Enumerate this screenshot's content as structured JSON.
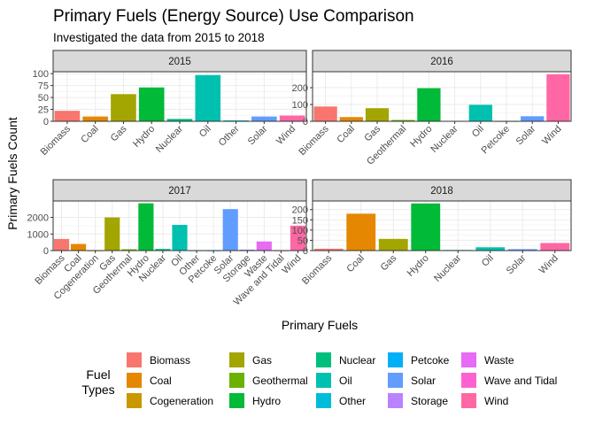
{
  "chart_data": {
    "type": "bar",
    "title": "Primary Fuels (Energy Source) Use Comparison",
    "subtitle": "Investigated the data from 2015 to 2018",
    "xlabel": "Primary Fuels",
    "ylabel": "Primary Fuels Count",
    "legend": {
      "title_lines": [
        "Fuel",
        "Types"
      ],
      "position": "bottom",
      "entries": [
        {
          "name": "Biomass",
          "color": "#F8766D"
        },
        {
          "name": "Coal",
          "color": "#E58700"
        },
        {
          "name": "Cogeneration",
          "color": "#C99800"
        },
        {
          "name": "Gas",
          "color": "#A3A500"
        },
        {
          "name": "Geothermal",
          "color": "#6BB100"
        },
        {
          "name": "Hydro",
          "color": "#00BA38"
        },
        {
          "name": "Nuclear",
          "color": "#00BF7D"
        },
        {
          "name": "Oil",
          "color": "#00C0AF"
        },
        {
          "name": "Other",
          "color": "#00BCD8"
        },
        {
          "name": "Petcoke",
          "color": "#00B0F6"
        },
        {
          "name": "Solar",
          "color": "#619CFF"
        },
        {
          "name": "Storage",
          "color": "#B983FF"
        },
        {
          "name": "Waste",
          "color": "#E76BF3"
        },
        {
          "name": "Wave and Tidal",
          "color": "#FD61D1"
        },
        {
          "name": "Wind",
          "color": "#FF67A4"
        }
      ]
    },
    "panels": [
      {
        "strip": "2015",
        "categories": [
          "Biomass",
          "Coal",
          "Gas",
          "Hydro",
          "Nuclear",
          "Oil",
          "Other",
          "Solar",
          "Wind"
        ],
        "values": [
          22,
          10,
          57,
          71,
          5,
          97,
          2,
          10,
          12
        ],
        "ylim": [
          0,
          104
        ],
        "yticks": [
          0,
          25,
          50,
          75,
          100
        ]
      },
      {
        "strip": "2016",
        "categories": [
          "Biomass",
          "Coal",
          "Gas",
          "Geothermal",
          "Hydro",
          "Nuclear",
          "Oil",
          "Petcoke",
          "Solar",
          "Wind"
        ],
        "values": [
          88,
          25,
          78,
          8,
          197,
          2,
          98,
          1,
          30,
          280
        ],
        "ylim": [
          0,
          295
        ],
        "yticks": [
          0,
          100,
          200
        ]
      },
      {
        "strip": "2017",
        "categories": [
          "Biomass",
          "Coal",
          "Cogeneration",
          "Gas",
          "Geothermal",
          "Hydro",
          "Nuclear",
          "Oil",
          "Other",
          "Petcoke",
          "Solar",
          "Storage",
          "Waste",
          "Wave and Tidal",
          "Wind"
        ],
        "values": [
          700,
          400,
          5,
          2000,
          80,
          2850,
          100,
          1550,
          10,
          5,
          2500,
          60,
          550,
          5,
          1500
        ],
        "ylim": [
          0,
          2990
        ],
        "yticks": [
          0,
          1000,
          2000
        ]
      },
      {
        "strip": "2018",
        "categories": [
          "Biomass",
          "Coal",
          "Gas",
          "Hydro",
          "Nuclear",
          "Oil",
          "Solar",
          "Wind"
        ],
        "values": [
          9,
          180,
          57,
          230,
          3,
          16,
          7,
          37
        ],
        "ylim": [
          0,
          242
        ],
        "yticks": [
          0,
          50,
          100,
          150,
          200
        ]
      }
    ],
    "grid": true
  }
}
